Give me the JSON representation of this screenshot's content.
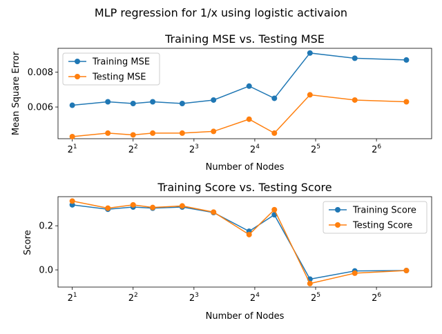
{
  "suptitle": "MLP regression for 1/x using logistic activaion",
  "chart_data": [
    {
      "type": "line",
      "title": "Training MSE vs. Testing MSE",
      "xlabel": "Number of Nodes",
      "ylabel": "Mean Square Error",
      "xscale": "log2",
      "x": [
        2,
        3,
        4,
        5,
        7,
        10,
        15,
        20,
        30,
        50,
        90
      ],
      "xlim": [
        1.7,
        120
      ],
      "ylim": [
        0.00418,
        0.00937
      ],
      "xticks": [
        {
          "value": 2,
          "base": "2",
          "exp": "1"
        },
        {
          "value": 4,
          "base": "2",
          "exp": "2"
        },
        {
          "value": 8,
          "base": "2",
          "exp": "3"
        },
        {
          "value": 16,
          "base": "2",
          "exp": "4"
        },
        {
          "value": 32,
          "base": "2",
          "exp": "5"
        },
        {
          "value": 64,
          "base": "2",
          "exp": "6"
        }
      ],
      "yticks": [
        {
          "value": 0.006,
          "label": "0.006"
        },
        {
          "value": 0.008,
          "label": "0.008"
        }
      ],
      "legend_position": "top-left",
      "grid": false,
      "series": [
        {
          "name": "Training MSE",
          "color": "#1f77b4",
          "values": [
            0.0061,
            0.0063,
            0.0062,
            0.0063,
            0.0062,
            0.0064,
            0.0072,
            0.0065,
            0.0091,
            0.0088,
            0.0087
          ]
        },
        {
          "name": "Testing MSE",
          "color": "#ff7f0e",
          "values": [
            0.0043,
            0.0045,
            0.0044,
            0.0045,
            0.0045,
            0.0046,
            0.0053,
            0.0045,
            0.0067,
            0.0064,
            0.0063
          ]
        }
      ]
    },
    {
      "type": "line",
      "title": "Training Score vs. Testing Score",
      "xlabel": "Number of Nodes",
      "ylabel": "Score",
      "xscale": "log2",
      "x": [
        2,
        3,
        4,
        5,
        7,
        10,
        15,
        20,
        30,
        50,
        90
      ],
      "xlim": [
        1.7,
        120
      ],
      "ylim": [
        -0.078,
        0.332
      ],
      "xticks": [
        {
          "value": 2,
          "base": "2",
          "exp": "1"
        },
        {
          "value": 4,
          "base": "2",
          "exp": "2"
        },
        {
          "value": 8,
          "base": "2",
          "exp": "3"
        },
        {
          "value": 16,
          "base": "2",
          "exp": "4"
        },
        {
          "value": 32,
          "base": "2",
          "exp": "5"
        },
        {
          "value": 64,
          "base": "2",
          "exp": "6"
        }
      ],
      "yticks": [
        {
          "value": 0.0,
          "label": "0.0"
        },
        {
          "value": 0.2,
          "label": "0.2"
        }
      ],
      "legend_position": "top-right",
      "grid": false,
      "series": [
        {
          "name": "Training Score",
          "color": "#1f77b4",
          "values": [
            0.295,
            0.275,
            0.285,
            0.28,
            0.285,
            0.26,
            0.175,
            0.25,
            -0.042,
            -0.005,
            -0.003
          ]
        },
        {
          "name": "Testing Score",
          "color": "#ff7f0e",
          "values": [
            0.312,
            0.28,
            0.295,
            0.283,
            0.29,
            0.262,
            0.16,
            0.273,
            -0.062,
            -0.015,
            -0.003
          ]
        }
      ]
    }
  ]
}
